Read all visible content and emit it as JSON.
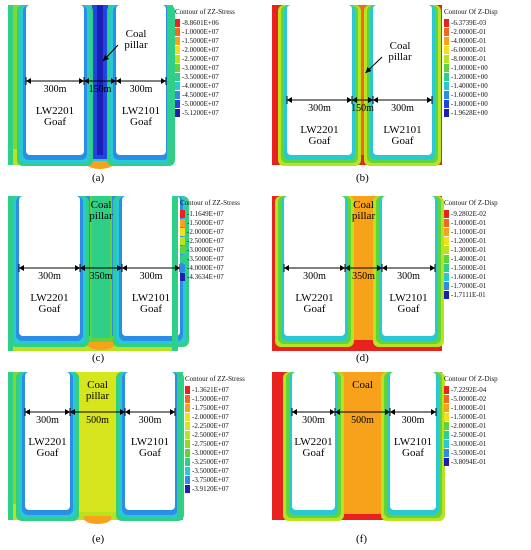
{
  "labels": {
    "coal_pillar_two_line": [
      "Coal",
      "pillar"
    ],
    "coal": "Coal",
    "goaf_left": [
      "LW2201",
      "Goaf"
    ],
    "goaf_right": [
      "LW2101",
      "Goaf"
    ],
    "dim_300": "300m"
  },
  "panels": [
    {
      "id": "a",
      "caption": "(a)",
      "kind": "stress",
      "pillar_width": "150m",
      "legend_title": "Contour of ZZ-Stress",
      "legend": [
        {
          "color": "#e8231f",
          "value": "-8.8601E+06"
        },
        {
          "color": "#f16a1b",
          "value": "-1.0000E+07"
        },
        {
          "color": "#f7a21a",
          "value": "-1.5000E+07"
        },
        {
          "color": "#f3e01a",
          "value": "-2.0000E+07"
        },
        {
          "color": "#b8e31e",
          "value": "-2.5000E+07"
        },
        {
          "color": "#5fd43d",
          "value": "-3.0000E+07"
        },
        {
          "color": "#2fcf88",
          "value": "-3.5000E+07"
        },
        {
          "color": "#29c9d4",
          "value": "-4.0000E+07"
        },
        {
          "color": "#2a8ee6",
          "value": "-4.5000E+07"
        },
        {
          "color": "#2244e0",
          "value": "-5.0000E+07"
        },
        {
          "color": "#1b1fb4",
          "value": "-5.1200E+07"
        }
      ]
    },
    {
      "id": "b",
      "caption": "(b)",
      "kind": "disp",
      "pillar_width": "150m",
      "legend_title": "Contour Of Z-Disp",
      "legend": [
        {
          "color": "#e8231f",
          "value": "-6.3739E-03"
        },
        {
          "color": "#f16a1b",
          "value": "-2.0000E-01"
        },
        {
          "color": "#f7a21a",
          "value": "-4.0000E-01"
        },
        {
          "color": "#f3e01a",
          "value": "-6.0000E-01"
        },
        {
          "color": "#b8e31e",
          "value": "-8.0000E-01"
        },
        {
          "color": "#5fd43d",
          "value": "-1.0000E+00"
        },
        {
          "color": "#2fcf88",
          "value": "-1.2000E+00"
        },
        {
          "color": "#29c9d4",
          "value": "-1.4000E+00"
        },
        {
          "color": "#2a8ee6",
          "value": "-1.6000E+00"
        },
        {
          "color": "#2244e0",
          "value": "-1.8000E+00"
        },
        {
          "color": "#1b1fb4",
          "value": "-1.9628E+00"
        }
      ]
    },
    {
      "id": "c",
      "caption": "(c)",
      "kind": "stress",
      "pillar_width": "350m",
      "legend_title": "Contour of ZZ-Stress",
      "legend": [
        {
          "color": "#e8231f",
          "value": "-1.1649E+07"
        },
        {
          "color": "#f7a21a",
          "value": "-1.5000E+07"
        },
        {
          "color": "#f3e01a",
          "value": "-2.0000E+07"
        },
        {
          "color": "#b8e31e",
          "value": "-2.5000E+07"
        },
        {
          "color": "#5fd43d",
          "value": "-3.0000E+07"
        },
        {
          "color": "#2fcf88",
          "value": "-3.5000E+07"
        },
        {
          "color": "#2a8ee6",
          "value": "-4.0000E+07"
        },
        {
          "color": "#1b1fb4",
          "value": "-4.3634E+07"
        }
      ]
    },
    {
      "id": "d",
      "caption": "(d)",
      "kind": "disp",
      "pillar_width": "350m",
      "legend_title": "Contour Of Z-Disp",
      "legend": [
        {
          "color": "#e8231f",
          "value": "-9.2802E-02"
        },
        {
          "color": "#f16a1b",
          "value": "-1.0000E-01"
        },
        {
          "color": "#f7a21a",
          "value": "-1.1000E-01"
        },
        {
          "color": "#f3e01a",
          "value": "-1.2000E-01"
        },
        {
          "color": "#b8e31e",
          "value": "-1.3000E-01"
        },
        {
          "color": "#5fd43d",
          "value": "-1.4000E-01"
        },
        {
          "color": "#2fcf88",
          "value": "-1.5000E-01"
        },
        {
          "color": "#29c9d4",
          "value": "-1.6000E-01"
        },
        {
          "color": "#2a8ee6",
          "value": "-1.7000E-01"
        },
        {
          "color": "#1b1fb4",
          "value": "-1.7111E-01"
        }
      ]
    },
    {
      "id": "e",
      "caption": "(e)",
      "kind": "stress",
      "pillar_width": "500m",
      "legend_title": "Contour of ZZ-Stress",
      "legend": [
        {
          "color": "#e8231f",
          "value": "-1.3621E+07"
        },
        {
          "color": "#f16a1b",
          "value": "-1.5000E+07"
        },
        {
          "color": "#f7a21a",
          "value": "-1.7500E+07"
        },
        {
          "color": "#f3e01a",
          "value": "-2.0000E+07"
        },
        {
          "color": "#d7e51c",
          "value": "-2.2500E+07"
        },
        {
          "color": "#b8e31e",
          "value": "-2.5000E+07"
        },
        {
          "color": "#8edc2a",
          "value": "-2.7500E+07"
        },
        {
          "color": "#5fd43d",
          "value": "-3.0000E+07"
        },
        {
          "color": "#2fcf88",
          "value": "-3.2500E+07"
        },
        {
          "color": "#29c9d4",
          "value": "-3.5000E+07"
        },
        {
          "color": "#2a8ee6",
          "value": "-3.7500E+07"
        },
        {
          "color": "#1b1fb4",
          "value": "-3.9120E+07"
        }
      ]
    },
    {
      "id": "f",
      "caption": "(f)",
      "kind": "disp",
      "pillar_width": "500m",
      "legend_title": "Contour Of Z-Disp",
      "legend": [
        {
          "color": "#e8231f",
          "value": "-7.2292E-04"
        },
        {
          "color": "#f16a1b",
          "value": "-5.0000E-02"
        },
        {
          "color": "#f7a21a",
          "value": "-1.0000E-01"
        },
        {
          "color": "#f3e01a",
          "value": "-1.5000E-01"
        },
        {
          "color": "#5fd43d",
          "value": "-2.0000E-01"
        },
        {
          "color": "#2fcf88",
          "value": "-2.5000E-01"
        },
        {
          "color": "#29c9d4",
          "value": "-3.0000E-01"
        },
        {
          "color": "#2a8ee6",
          "value": "-3.5000E-01"
        },
        {
          "color": "#1b1fb4",
          "value": "-3.8094E-01"
        }
      ]
    }
  ]
}
